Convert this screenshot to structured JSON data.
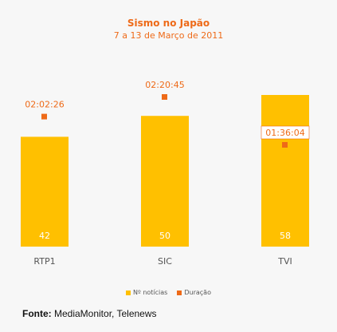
{
  "chart_data": {
    "type": "bar",
    "title": "Sismo no Japão",
    "subtitle": "7 a 13 de Março de 2011",
    "categories": [
      "RTP1",
      "SIC",
      "TVI"
    ],
    "series": [
      {
        "name": "Nº notícias",
        "kind": "bar",
        "values": [
          42,
          50,
          58
        ],
        "color": "#ffc000"
      },
      {
        "name": "Duração",
        "kind": "point",
        "values": [
          "02:02:26",
          "02:20:45",
          "01:36:04"
        ],
        "color": "#ee6a18"
      }
    ],
    "grid": false,
    "legend_position": "bottom"
  },
  "source": {
    "label": "Fonte:",
    "text": " MediaMonitor, Telenews"
  }
}
